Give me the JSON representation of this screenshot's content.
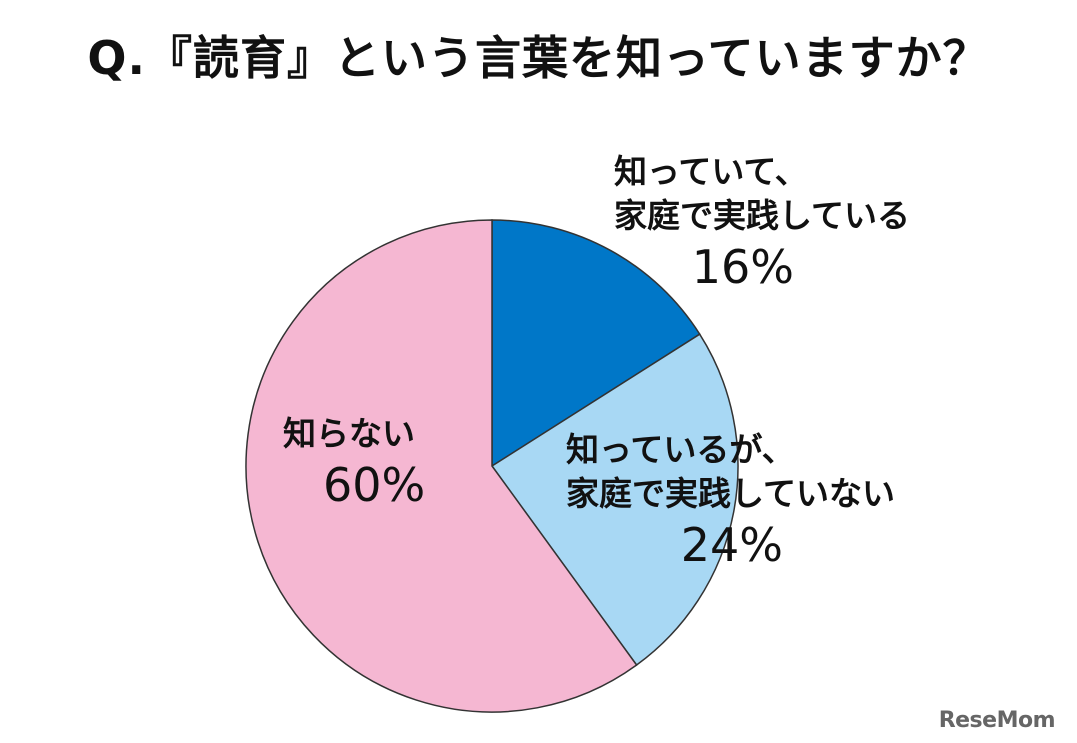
{
  "chart_data": {
    "type": "pie",
    "title": "Q.『読育』という言葉を知っていますか？",
    "slices": [
      {
        "label_lines": [
          "知っていて、",
          "家庭で実践している"
        ],
        "value": 16,
        "value_label": "16%",
        "color": "#0077c8"
      },
      {
        "label_lines": [
          "知っているが、",
          "家庭で実践していない"
        ],
        "value": 24,
        "value_label": "24%",
        "color": "#a8d8f4"
      },
      {
        "label_lines": [
          "知らない"
        ],
        "value": 60,
        "value_label": "60%",
        "color": "#f5b7d2"
      }
    ],
    "start": "12 o'clock",
    "direction": "clockwise",
    "edge_color": "#333333"
  },
  "watermark": "ReseMom"
}
